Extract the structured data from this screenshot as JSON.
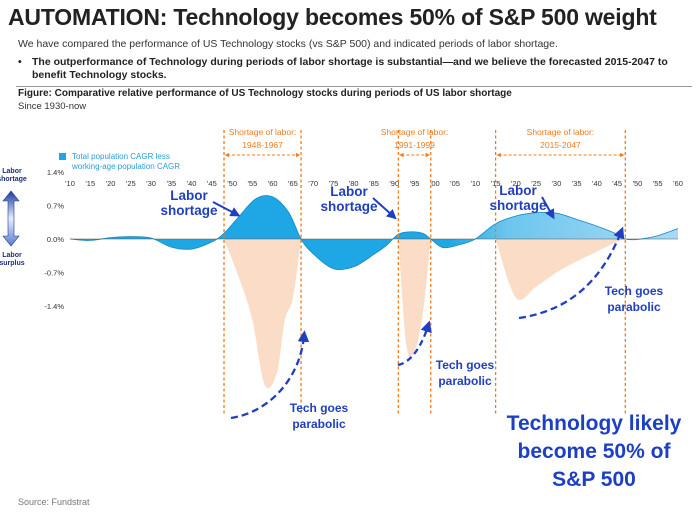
{
  "header": {
    "title": "AUTOMATION: Technology becomes 50% of S&P 500 weight",
    "subtitle": "We have compared the performance of US Technology stocks (vs S&P 500) and indicated periods of labor shortage.",
    "bullet": "The outperformance of Technology during periods of labor shortage is substantial—and we believe the forecasted 2015-2047 to benefit Technology stocks."
  },
  "figure": {
    "title": "Figure: Comparative relative performance of US Technology stocks during periods of US labor shortage",
    "subtitle": "Since 1930-now",
    "source": "Source: Fundstrat"
  },
  "colors": {
    "cagr_fill": "#1ea7e4",
    "cagr_fill_light": "#a9daf5",
    "tech_fill": "#fbdcc6",
    "shortage_line": "#f07c1e",
    "annotation_blue": "#1f3fbf"
  },
  "chart_data": {
    "type": "area",
    "x_tick_labels": [
      "'10",
      "'15",
      "'20",
      "'25",
      "'30",
      "'35",
      "'40",
      "'45",
      "'50",
      "'55",
      "'60",
      "'65",
      "'70",
      "'75",
      "'80",
      "'85",
      "'90",
      "'95",
      "'00",
      "'05",
      "'10",
      "'15",
      "'20",
      "'25",
      "'30",
      "'35",
      "'40",
      "'45",
      "'50",
      "'55",
      "'60"
    ],
    "xlim": [
      1910,
      2060
    ],
    "y_tick_labels": [
      "1.4%",
      "0.7%",
      "0.0%",
      "-0.7%",
      "-1.4%"
    ],
    "ylim": [
      -1.4,
      1.4
    ],
    "y_axis_top_label": "Labor shortage",
    "y_axis_bottom_label": "Labor surplus",
    "legend": {
      "label_line1": "Total population CAGR less",
      "label_line2": "working-age population CAGR",
      "placement": "top-left"
    },
    "series": [
      {
        "name": "Total population CAGR less working-age population CAGR",
        "x": [
          1910,
          1915,
          1920,
          1925,
          1930,
          1935,
          1940,
          1945,
          1948,
          1952,
          1956,
          1960,
          1964,
          1967,
          1970,
          1975,
          1980,
          1985,
          1988,
          1991,
          1994,
          1997,
          1999,
          2002,
          2006,
          2010,
          2015,
          2020,
          2025,
          2030,
          2035,
          2040,
          2045,
          2047,
          2050,
          2055,
          2060
        ],
        "y": [
          0.0,
          -0.03,
          0.03,
          0.05,
          0.02,
          -0.17,
          -0.21,
          -0.06,
          0.12,
          0.5,
          0.85,
          0.88,
          0.55,
          0.0,
          -0.31,
          -0.62,
          -0.58,
          -0.32,
          -0.14,
          0.1,
          0.15,
          0.12,
          0.0,
          -0.18,
          -0.12,
          0.0,
          0.32,
          0.48,
          0.55,
          0.54,
          0.41,
          0.27,
          0.1,
          0.0,
          -0.01,
          0.07,
          0.22
        ]
      },
      {
        "name": "Tech relative performance",
        "periods": [
          {
            "x": [
              1948,
              1952,
              1955,
              1958,
              1961,
              1963,
              1965,
              1967
            ],
            "y": [
              0.0,
              -1.5,
              -2.9,
              -5.2,
              -4.8,
              -2.9,
              -2.1,
              0.0
            ]
          },
          {
            "x": [
              1991,
              1993,
              1995,
              1997,
              1999
            ],
            "y": [
              0.0,
              -3.8,
              -4.0,
              -2.7,
              0.0
            ]
          },
          {
            "x": [
              2015,
              2020,
              2025,
              2030,
              2035,
              2040,
              2045,
              2047
            ],
            "y": [
              0.0,
              -2.1,
              -1.7,
              -1.2,
              -0.8,
              -0.45,
              -0.1,
              0.0
            ]
          }
        ]
      }
    ],
    "shortage_periods": [
      {
        "label_line1": "Shortage of labor:",
        "label_line2": "1948-1967",
        "start": 1948,
        "end": 1967
      },
      {
        "label_line1": "Shortage of labor:",
        "label_line2": "1991-1999",
        "start": 1991,
        "end": 1999
      },
      {
        "label_line1": "Shortage of labor:",
        "label_line2": "2015-2047",
        "start": 2015,
        "end": 2047
      }
    ],
    "annotations": {
      "labor_shortage_line1": "Labor",
      "labor_shortage_line2": "shortage",
      "tech_parabolic_line1": "Tech goes",
      "tech_parabolic_line2": "parabolic",
      "callout_line1": "Technology likely",
      "callout_line2": "become 50% of",
      "callout_line3": "S&P 500"
    },
    "grid": false
  }
}
